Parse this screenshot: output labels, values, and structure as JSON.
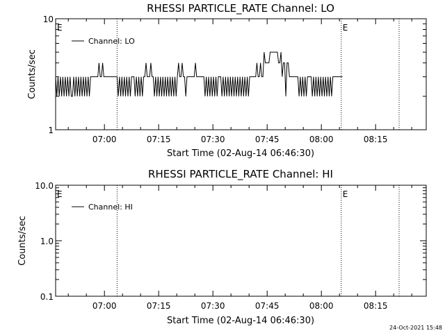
{
  "footer_timestamp": "24-Oct-2021 15:48",
  "chart_data": [
    {
      "type": "line",
      "title": "RHESSI PARTICLE_RATE Channel: LO",
      "xlabel": "Start Time (02-Aug-14 06:46:30)",
      "ylabel": "Counts/sec",
      "yscale": "log",
      "ylim": [
        1,
        10
      ],
      "ytick_labels": [
        "1",
        "10"
      ],
      "xlim": [
        "06:46:30",
        "08:29:00"
      ],
      "xtick_labels": [
        "07:00",
        "07:15",
        "07:30",
        "07:45",
        "08:00",
        "08:15"
      ],
      "grid": false,
      "legend": "top-left",
      "legend_entries": [
        "Channel: LO"
      ],
      "event_markers": [
        {
          "time": "06:46:30",
          "label": "E"
        },
        {
          "time": "07:03:30",
          "label": ""
        },
        {
          "time": "08:05:30",
          "label": "E"
        },
        {
          "time": "08:21:30",
          "label": ""
        }
      ],
      "series": [
        {
          "name": "Channel: LO",
          "x_start": "06:46:30",
          "x_step_seconds": 20,
          "values": [
            3,
            2,
            3,
            2,
            3,
            2,
            3,
            2,
            3,
            2,
            3,
            2,
            3,
            2,
            2,
            3,
            2,
            3,
            2,
            3,
            2,
            3,
            2,
            3,
            2,
            3,
            2,
            3,
            2,
            3,
            3,
            3,
            3,
            3,
            3,
            3,
            4,
            3,
            3,
            4,
            3,
            3,
            3,
            3,
            3,
            3,
            3,
            3,
            3,
            3,
            3,
            3,
            2,
            3,
            2,
            3,
            2,
            3,
            2,
            3,
            2,
            3,
            2,
            3,
            3,
            3,
            2,
            3,
            2,
            3,
            2,
            3,
            2,
            3,
            3,
            4,
            3,
            3,
            3,
            4,
            3,
            3,
            2,
            3,
            2,
            3,
            2,
            3,
            2,
            3,
            2,
            3,
            2,
            3,
            2,
            3,
            2,
            3,
            2,
            3,
            2,
            3,
            4,
            3,
            3,
            4,
            3,
            3,
            2,
            3,
            3,
            3,
            3,
            3,
            3,
            3,
            4,
            3,
            3,
            3,
            3,
            3,
            3,
            3,
            2,
            3,
            2,
            3,
            2,
            3,
            2,
            3,
            2,
            3,
            2,
            3,
            3,
            3,
            2,
            3,
            2,
            3,
            2,
            3,
            2,
            3,
            2,
            3,
            2,
            3,
            2,
            3,
            2,
            3,
            2,
            3,
            2,
            3,
            2,
            3,
            2,
            3,
            3,
            3,
            3,
            3,
            3,
            4,
            3,
            3,
            4,
            3,
            3,
            5,
            4,
            4,
            4,
            4,
            5,
            5,
            5,
            5,
            5,
            5,
            5,
            4,
            4,
            5,
            3,
            4,
            4,
            2,
            4,
            4,
            3,
            3,
            3,
            3,
            3,
            3,
            3,
            3,
            2,
            3,
            2,
            3,
            2,
            3,
            2,
            3,
            3,
            3,
            3,
            2,
            3,
            2,
            3,
            2,
            3,
            2,
            3,
            2,
            3,
            2,
            3,
            2,
            3,
            2,
            3,
            2,
            3,
            3,
            3,
            3,
            3,
            3,
            3,
            3,
            3
          ]
        }
      ]
    },
    {
      "type": "line",
      "title": "RHESSI PARTICLE_RATE Channel: HI",
      "xlabel": "Start Time (02-Aug-14 06:46:30)",
      "ylabel": "Counts/sec",
      "yscale": "log",
      "ylim": [
        0.1,
        10
      ],
      "ytick_labels": [
        "0.1",
        "1.0",
        "10.0"
      ],
      "xlim": [
        "06:46:30",
        "08:29:00"
      ],
      "xtick_labels": [
        "07:00",
        "07:15",
        "07:30",
        "07:45",
        "08:00",
        "08:15"
      ],
      "grid": false,
      "legend": "top-left",
      "legend_entries": [
        "Channel: HI"
      ],
      "event_markers": [
        {
          "time": "06:46:30",
          "label": "E"
        },
        {
          "time": "07:03:30",
          "label": ""
        },
        {
          "time": "08:05:30",
          "label": "E"
        },
        {
          "time": "08:21:30",
          "label": ""
        }
      ],
      "series": [
        {
          "name": "Channel: HI",
          "values": []
        }
      ]
    }
  ]
}
